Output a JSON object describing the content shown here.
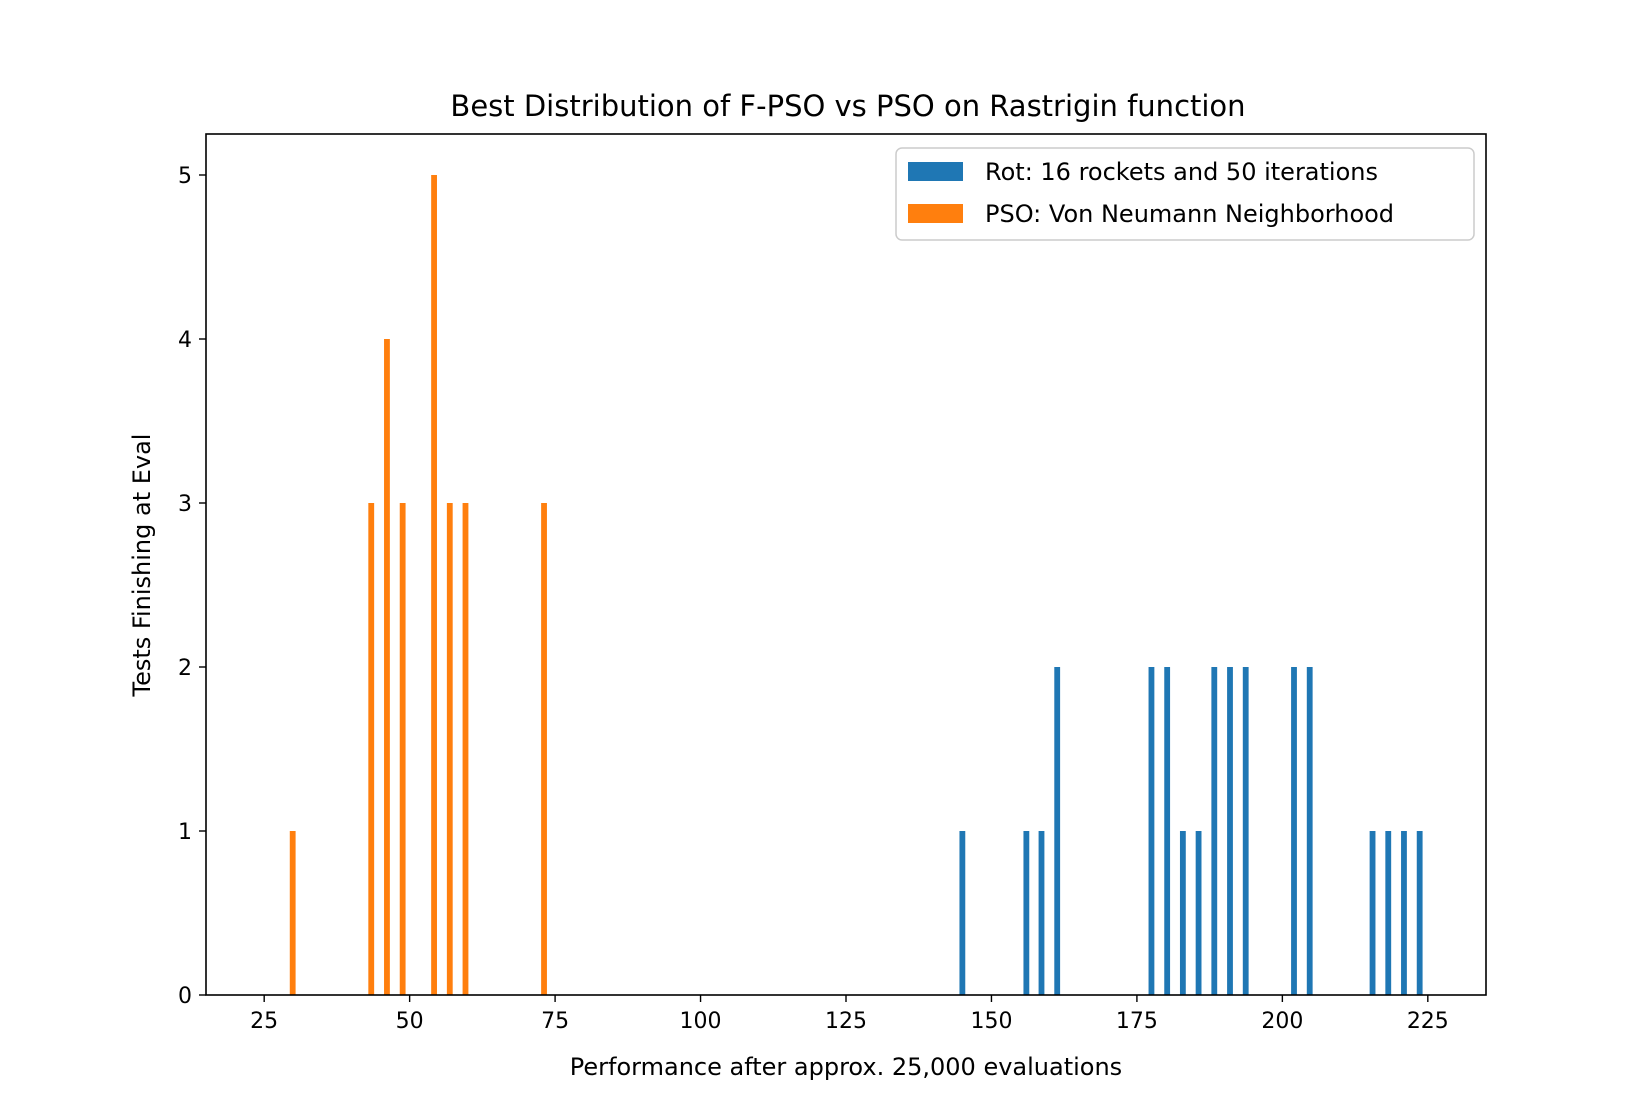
{
  "chart_data": {
    "type": "bar",
    "title": "Best Distribution of F-PSO vs PSO on Rastrigin function",
    "xlabel": "Performance after approx. 25,000 evaluations",
    "ylabel": "Tests Finishing at Eval",
    "xlim": [
      15,
      235
    ],
    "ylim": [
      0,
      5.25
    ],
    "xticks": [
      25,
      50,
      75,
      100,
      125,
      150,
      175,
      200,
      225
    ],
    "yticks": [
      0,
      1,
      2,
      3,
      4,
      5
    ],
    "legend_position": "top-right",
    "grid": false,
    "series": [
      {
        "name": "Rot: 16 rockets and 50 iterations",
        "color": "#1f77b4",
        "bar_width": 1.0,
        "x": [
          145,
          156,
          158.6,
          161.3,
          177.5,
          180.2,
          182.9,
          185.6,
          188.3,
          191,
          193.7,
          202,
          204.7,
          215.5,
          218.2,
          220.9,
          223.6
        ],
        "values": [
          1,
          1,
          1,
          2,
          2,
          2,
          1,
          1,
          2,
          2,
          2,
          2,
          2,
          1,
          1,
          1,
          1
        ]
      },
      {
        "name": "PSO: Von Neumann Neighborhood",
        "color": "#ff7f0e",
        "bar_width": 1.0,
        "x": [
          29.9,
          43.4,
          46.1,
          48.8,
          54.2,
          56.9,
          59.6,
          73.1
        ],
        "values": [
          1,
          3,
          4,
          3,
          5,
          3,
          3,
          3
        ]
      }
    ]
  }
}
